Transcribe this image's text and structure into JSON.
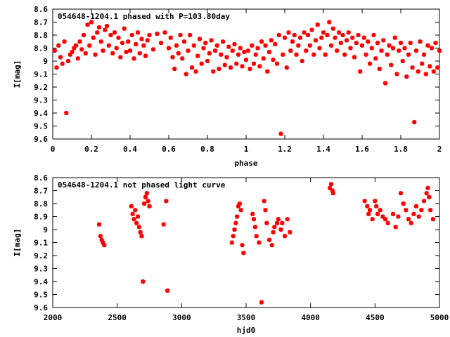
{
  "chart_data": [
    {
      "type": "scatter",
      "title": "054648-1204.1 phased with P=103.80day",
      "xlabel": "phase",
      "ylabel": "I[mag]",
      "xlim": [
        0,
        2
      ],
      "ylim": [
        9.6,
        8.6
      ],
      "y_inverted": true,
      "grid": false,
      "color": "#ff0000",
      "xticks": [
        "0",
        "0.2",
        "0.4",
        "0.6",
        "0.8",
        "1",
        "1.2",
        "1.4",
        "1.6",
        "1.8",
        "2"
      ],
      "xtick_values": [
        0,
        0.2,
        0.4,
        0.6,
        0.8,
        1.0,
        1.2,
        1.4,
        1.6,
        1.8,
        2.0
      ],
      "yticks": [
        "8.6",
        "8.7",
        "8.8",
        "8.9",
        "9",
        "9.1",
        "9.2",
        "9.3",
        "9.4",
        "9.5",
        "9.6"
      ],
      "ytick_values": [
        8.6,
        8.7,
        8.8,
        8.9,
        9.0,
        9.1,
        9.2,
        9.3,
        9.4,
        9.5,
        9.6
      ],
      "points": [
        [
          0.01,
          8.92
        ],
        [
          0.02,
          9.05
        ],
        [
          0.03,
          8.88
        ],
        [
          0.04,
          8.97
        ],
        [
          0.05,
          9.02
        ],
        [
          0.06,
          8.85
        ],
        [
          0.07,
          9.4
        ],
        [
          0.08,
          9.0
        ],
        [
          0.09,
          8.95
        ],
        [
          0.1,
          8.93
        ],
        [
          0.11,
          8.9
        ],
        [
          0.12,
          8.88
        ],
        [
          0.13,
          8.98
        ],
        [
          0.14,
          8.85
        ],
        [
          0.15,
          8.91
        ],
        [
          0.16,
          8.8
        ],
        [
          0.17,
          8.94
        ],
        [
          0.18,
          8.72
        ],
        [
          0.19,
          8.88
        ],
        [
          0.2,
          8.7
        ],
        [
          0.21,
          8.82
        ],
        [
          0.22,
          8.95
        ],
        [
          0.23,
          8.78
        ],
        [
          0.24,
          8.74
        ],
        [
          0.25,
          8.85
        ],
        [
          0.26,
          8.92
        ],
        [
          0.27,
          8.76
        ],
        [
          0.28,
          8.73
        ],
        [
          0.29,
          8.88
        ],
        [
          0.3,
          8.8
        ],
        [
          0.31,
          8.94
        ],
        [
          0.32,
          8.78
        ],
        [
          0.33,
          8.9
        ],
        [
          0.34,
          8.82
        ],
        [
          0.35,
          8.97
        ],
        [
          0.36,
          8.86
        ],
        [
          0.37,
          8.75
        ],
        [
          0.38,
          8.93
        ],
        [
          0.39,
          8.85
        ],
        [
          0.4,
          8.92
        ],
        [
          0.41,
          8.8
        ],
        [
          0.42,
          8.98
        ],
        [
          0.43,
          8.87
        ],
        [
          0.44,
          8.78
        ],
        [
          0.45,
          8.94
        ],
        [
          0.46,
          8.83
        ],
        [
          0.47,
          8.88
        ],
        [
          0.48,
          8.96
        ],
        [
          0.49,
          8.84
        ],
        [
          0.5,
          8.8
        ],
        [
          0.52,
          8.91
        ],
        [
          0.54,
          8.79
        ],
        [
          0.56,
          8.86
        ],
        [
          0.58,
          8.78
        ],
        [
          0.6,
          8.9
        ],
        [
          0.61,
          8.82
        ],
        [
          0.62,
          8.97
        ],
        [
          0.63,
          9.06
        ],
        [
          0.64,
          8.88
        ],
        [
          0.65,
          8.94
        ],
        [
          0.66,
          8.8
        ],
        [
          0.67,
          8.98
        ],
        [
          0.68,
          8.85
        ],
        [
          0.69,
          9.1
        ],
        [
          0.7,
          8.92
        ],
        [
          0.71,
          8.8
        ],
        [
          0.72,
          9.05
        ],
        [
          0.73,
          8.88
        ],
        [
          0.74,
          9.08
        ],
        [
          0.75,
          8.96
        ],
        [
          0.76,
          8.83
        ],
        [
          0.77,
          9.02
        ],
        [
          0.78,
          8.9
        ],
        [
          0.79,
          8.86
        ],
        [
          0.8,
          9.0
        ],
        [
          0.81,
          8.94
        ],
        [
          0.82,
          8.84
        ],
        [
          0.83,
          9.08
        ],
        [
          0.84,
          8.92
        ],
        [
          0.85,
          8.88
        ],
        [
          0.86,
          9.06
        ],
        [
          0.87,
          8.95
        ],
        [
          0.88,
          8.85
        ],
        [
          0.89,
          9.03
        ],
        [
          0.9,
          8.97
        ],
        [
          0.91,
          8.89
        ],
        [
          0.92,
          9.05
        ],
        [
          0.93,
          8.92
        ],
        [
          0.94,
          8.87
        ],
        [
          0.95,
          9.02
        ],
        [
          0.96,
          8.95
        ],
        [
          0.97,
          8.9
        ],
        [
          0.98,
          9.04
        ],
        [
          0.99,
          8.93
        ],
        [
          1.0,
          8.99
        ],
        [
          1.01,
          8.92
        ],
        [
          1.02,
          9.06
        ],
        [
          1.03,
          8.88
        ],
        [
          1.04,
          9.02
        ],
        [
          1.05,
          8.95
        ],
        [
          1.06,
          8.9
        ],
        [
          1.07,
          9.04
        ],
        [
          1.08,
          8.85
        ],
        [
          1.09,
          8.98
        ],
        [
          1.1,
          8.88
        ],
        [
          1.11,
          9.08
        ],
        [
          1.12,
          8.93
        ],
        [
          1.13,
          8.84
        ],
        [
          1.14,
          8.99
        ],
        [
          1.15,
          8.87
        ],
        [
          1.16,
          9.02
        ],
        [
          1.17,
          8.8
        ],
        [
          1.18,
          9.56
        ],
        [
          1.19,
          8.95
        ],
        [
          1.2,
          8.82
        ],
        [
          1.21,
          9.05
        ],
        [
          1.22,
          8.78
        ],
        [
          1.23,
          8.92
        ],
        [
          1.24,
          8.85
        ],
        [
          1.25,
          8.8
        ],
        [
          1.26,
          8.95
        ],
        [
          1.27,
          8.88
        ],
        [
          1.28,
          8.82
        ],
        [
          1.29,
          9.0
        ],
        [
          1.3,
          8.78
        ],
        [
          1.31,
          8.92
        ],
        [
          1.32,
          8.8
        ],
        [
          1.33,
          8.88
        ],
        [
          1.34,
          8.76
        ],
        [
          1.35,
          8.95
        ],
        [
          1.36,
          8.84
        ],
        [
          1.37,
          8.72
        ],
        [
          1.38,
          8.9
        ],
        [
          1.39,
          8.82
        ],
        [
          1.4,
          8.78
        ],
        [
          1.41,
          8.95
        ],
        [
          1.42,
          8.8
        ],
        [
          1.43,
          8.7
        ],
        [
          1.44,
          8.88
        ],
        [
          1.45,
          8.75
        ],
        [
          1.46,
          8.82
        ],
        [
          1.47,
          8.92
        ],
        [
          1.48,
          8.78
        ],
        [
          1.49,
          8.86
        ],
        [
          1.5,
          8.8
        ],
        [
          1.51,
          8.95
        ],
        [
          1.52,
          8.84
        ],
        [
          1.53,
          8.78
        ],
        [
          1.54,
          8.9
        ],
        [
          1.55,
          8.82
        ],
        [
          1.56,
          8.97
        ],
        [
          1.57,
          8.86
        ],
        [
          1.58,
          8.8
        ],
        [
          1.59,
          9.08
        ],
        [
          1.6,
          8.88
        ],
        [
          1.61,
          8.82
        ],
        [
          1.62,
          8.95
        ],
        [
          1.63,
          8.85
        ],
        [
          1.64,
          9.02
        ],
        [
          1.65,
          8.9
        ],
        [
          1.66,
          8.8
        ],
        [
          1.67,
          8.98
        ],
        [
          1.68,
          8.86
        ],
        [
          1.69,
          9.06
        ],
        [
          1.7,
          8.92
        ],
        [
          1.71,
          8.84
        ],
        [
          1.72,
          9.17
        ],
        [
          1.73,
          8.95
        ],
        [
          1.74,
          8.88
        ],
        [
          1.75,
          9.03
        ],
        [
          1.76,
          8.9
        ],
        [
          1.77,
          8.82
        ],
        [
          1.78,
          9.1
        ],
        [
          1.79,
          8.92
        ],
        [
          1.8,
          8.86
        ],
        [
          1.81,
          9.0
        ],
        [
          1.82,
          8.9
        ],
        [
          1.83,
          9.12
        ],
        [
          1.84,
          8.95
        ],
        [
          1.85,
          8.86
        ],
        [
          1.86,
          9.05
        ],
        [
          1.87,
          9.47
        ],
        [
          1.88,
          8.92
        ],
        [
          1.89,
          9.08
        ],
        [
          1.9,
          8.85
        ],
        [
          1.91,
          9.02
        ],
        [
          1.92,
          8.95
        ],
        [
          1.93,
          9.1
        ],
        [
          1.94,
          8.88
        ],
        [
          1.95,
          9.04
        ],
        [
          1.96,
          8.9
        ],
        [
          1.97,
          9.08
        ],
        [
          1.98,
          8.86
        ],
        [
          1.99,
          9.05
        ],
        [
          2.0,
          8.92
        ]
      ]
    },
    {
      "type": "scatter",
      "title": "054648-1204.1 not phased light curve",
      "xlabel": "hjd0",
      "ylabel": "I[mag]",
      "xlim": [
        2000,
        5000
      ],
      "ylim": [
        9.6,
        8.6
      ],
      "y_inverted": true,
      "grid": false,
      "color": "#ff0000",
      "xticks": [
        "2000",
        "2500",
        "3000",
        "3500",
        "4000",
        "4500",
        "5000"
      ],
      "xtick_values": [
        2000,
        2500,
        3000,
        3500,
        4000,
        4500,
        5000
      ],
      "yticks": [
        "8.6",
        "8.7",
        "8.8",
        "8.9",
        "9",
        "9.1",
        "9.2",
        "9.3",
        "9.4",
        "9.5",
        "9.6"
      ],
      "ytick_values": [
        8.6,
        8.7,
        8.8,
        8.9,
        9.0,
        9.1,
        9.2,
        9.3,
        9.4,
        9.5,
        9.6
      ],
      "points": [
        [
          2360,
          8.96
        ],
        [
          2370,
          9.05
        ],
        [
          2380,
          9.08
        ],
        [
          2390,
          9.1
        ],
        [
          2400,
          9.12
        ],
        [
          2610,
          8.82
        ],
        [
          2620,
          8.88
        ],
        [
          2630,
          8.92
        ],
        [
          2640,
          8.85
        ],
        [
          2650,
          8.95
        ],
        [
          2660,
          8.9
        ],
        [
          2670,
          8.98
        ],
        [
          2680,
          9.02
        ],
        [
          2690,
          9.05
        ],
        [
          2700,
          9.4
        ],
        [
          2710,
          8.8
        ],
        [
          2720,
          8.75
        ],
        [
          2730,
          8.72
        ],
        [
          2740,
          8.78
        ],
        [
          2750,
          8.82
        ],
        [
          2860,
          8.96
        ],
        [
          2880,
          8.78
        ],
        [
          2890,
          9.47
        ],
        [
          3390,
          9.1
        ],
        [
          3400,
          9.05
        ],
        [
          3410,
          9.0
        ],
        [
          3420,
          8.95
        ],
        [
          3430,
          8.9
        ],
        [
          3440,
          8.82
        ],
        [
          3450,
          8.8
        ],
        [
          3460,
          8.85
        ],
        [
          3470,
          9.12
        ],
        [
          3480,
          9.18
        ],
        [
          3550,
          8.88
        ],
        [
          3560,
          8.92
        ],
        [
          3570,
          8.98
        ],
        [
          3580,
          9.05
        ],
        [
          3600,
          9.1
        ],
        [
          3620,
          9.56
        ],
        [
          3640,
          8.78
        ],
        [
          3650,
          8.85
        ],
        [
          3660,
          8.95
        ],
        [
          3680,
          9.08
        ],
        [
          3700,
          9.12
        ],
        [
          3710,
          9.02
        ],
        [
          3720,
          8.98
        ],
        [
          3740,
          8.95
        ],
        [
          3750,
          8.92
        ],
        [
          3770,
          9.0
        ],
        [
          3780,
          8.95
        ],
        [
          3800,
          9.05
        ],
        [
          3820,
          8.92
        ],
        [
          3840,
          9.02
        ],
        [
          4150,
          8.68
        ],
        [
          4160,
          8.65
        ],
        [
          4170,
          8.7
        ],
        [
          4175,
          8.72
        ],
        [
          4420,
          8.78
        ],
        [
          4440,
          8.82
        ],
        [
          4450,
          8.88
        ],
        [
          4460,
          8.85
        ],
        [
          4480,
          8.92
        ],
        [
          4500,
          8.78
        ],
        [
          4510,
          8.82
        ],
        [
          4520,
          8.88
        ],
        [
          4540,
          8.85
        ],
        [
          4560,
          8.9
        ],
        [
          4580,
          8.92
        ],
        [
          4600,
          8.95
        ],
        [
          4640,
          8.88
        ],
        [
          4660,
          8.98
        ],
        [
          4680,
          8.9
        ],
        [
          4700,
          8.72
        ],
        [
          4720,
          8.8
        ],
        [
          4740,
          8.85
        ],
        [
          4760,
          8.92
        ],
        [
          4780,
          8.95
        ],
        [
          4800,
          8.88
        ],
        [
          4820,
          8.82
        ],
        [
          4840,
          8.9
        ],
        [
          4860,
          8.85
        ],
        [
          4880,
          8.78
        ],
        [
          4900,
          8.72
        ],
        [
          4910,
          8.68
        ],
        [
          4920,
          8.75
        ],
        [
          4930,
          8.85
        ],
        [
          4950,
          8.92
        ]
      ]
    }
  ]
}
